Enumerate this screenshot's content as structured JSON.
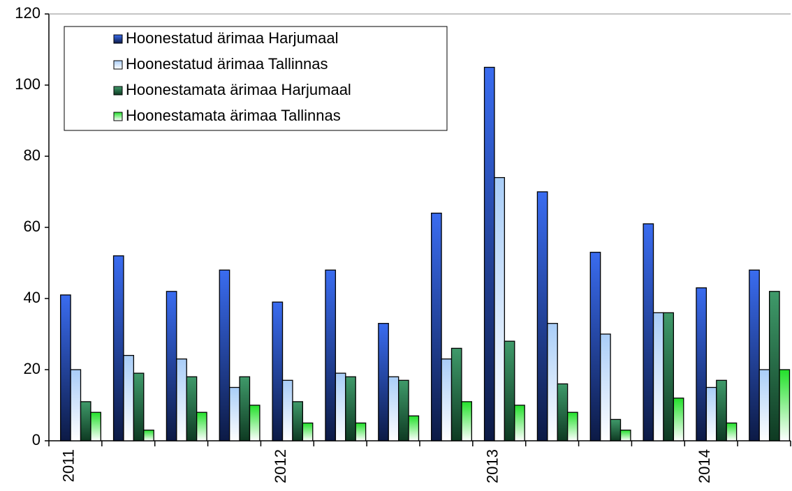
{
  "chart_data": {
    "type": "bar",
    "categories": [
      "2011",
      null,
      null,
      null,
      "2012",
      null,
      null,
      null,
      "2013",
      null,
      null,
      null,
      "2014",
      null
    ],
    "series": [
      {
        "name": "Hoonestatud ärimaa Harjumaal",
        "color": "#3a6cf0",
        "values": [
          41,
          52,
          42,
          48,
          39,
          48,
          33,
          64,
          105,
          70,
          53,
          61,
          43,
          48
        ]
      },
      {
        "name": "Hoonestatud ärimaa Tallinnas",
        "color": "#a9cdf7",
        "values": [
          20,
          24,
          23,
          15,
          17,
          19,
          18,
          23,
          74,
          33,
          30,
          36,
          15,
          20
        ]
      },
      {
        "name": "Hoonestamata ärimaa Harjumaal",
        "color": "#3f9a6a",
        "values": [
          11,
          19,
          18,
          18,
          11,
          18,
          17,
          26,
          28,
          16,
          6,
          36,
          17,
          42
        ]
      },
      {
        "name": "Hoonestamata ärimaa Tallinnas",
        "color": "#22e02a",
        "values": [
          8,
          3,
          8,
          10,
          5,
          5,
          7,
          11,
          10,
          8,
          3,
          12,
          5,
          20
        ]
      }
    ],
    "ylim": [
      0,
      120
    ],
    "yticks": [
      0,
      20,
      40,
      60,
      80,
      100,
      120
    ],
    "grid": false,
    "legend": "upper left"
  }
}
